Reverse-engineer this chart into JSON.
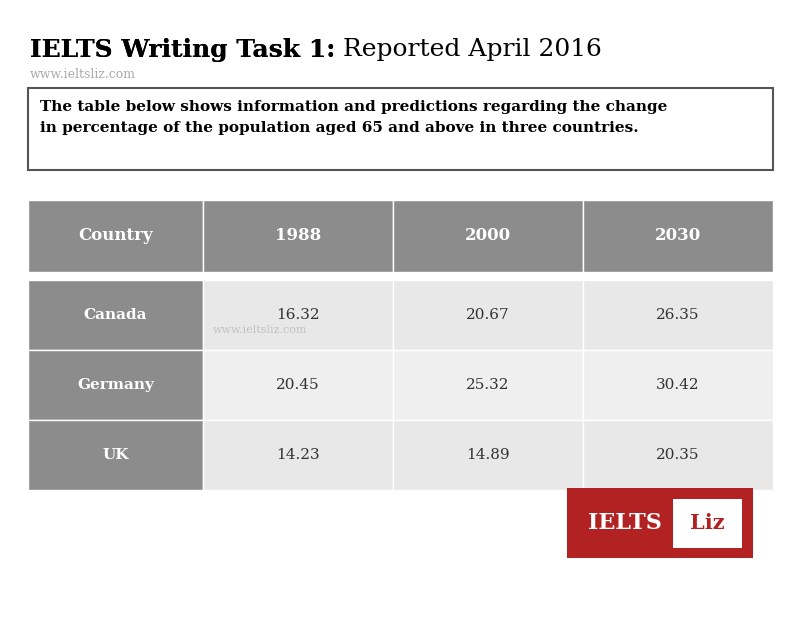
{
  "title_bold": "IELTS Writing Task 1:",
  "title_normal": " Reported April 2016",
  "subtitle": "www.ieltsliz.com",
  "description": "The table below shows information and predictions regarding the change\nin percentage of the population aged 65 and above in three countries.",
  "headers": [
    "Country",
    "1988",
    "2000",
    "2030"
  ],
  "rows": [
    [
      "Canada",
      "16.32",
      "20.67",
      "26.35"
    ],
    [
      "Germany",
      "20.45",
      "25.32",
      "30.42"
    ],
    [
      "UK",
      "14.23",
      "14.89",
      "20.35"
    ]
  ],
  "header_bg": "#8C8C8C",
  "header_text": "#FFFFFF",
  "country_bg": "#8C8C8C",
  "country_text": "#FFFFFF",
  "data_bg_even": "#E8E8E8",
  "data_bg_odd": "#EFEFEF",
  "data_text": "#333333",
  "watermark": "www.ieltsliz.com",
  "bg_color": "#FFFFFF",
  "ielts_box_bg": "#B22222",
  "ielts_text": "IELTS ",
  "liz_text": "Liz",
  "desc_box_border": "#555555",
  "font_family": "serif",
  "title_fontsize": 18,
  "subtitle_fontsize": 9,
  "desc_fontsize": 11,
  "header_fontsize": 12,
  "data_fontsize": 11
}
